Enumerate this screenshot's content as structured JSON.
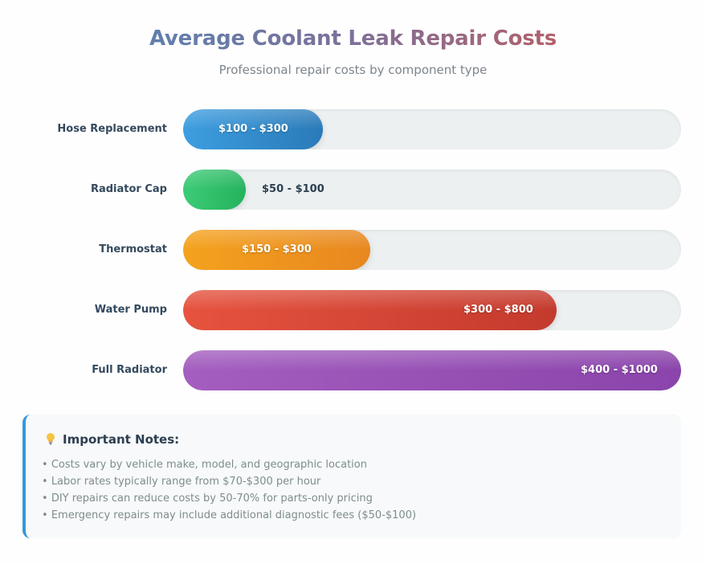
{
  "title": "Average Coolant Leak Repair Costs",
  "subtitle": "Professional repair costs by component type",
  "chart_data": {
    "type": "bar",
    "orientation": "horizontal",
    "title": "Average Coolant Leak Repair Costs",
    "subtitle": "Professional repair costs by component type",
    "categories": [
      "Hose Replacement",
      "Radiator Cap",
      "Thermostat",
      "Water Pump",
      "Full Radiator"
    ],
    "range_labels": [
      "$100 - $300",
      "$50 - $100",
      "$150 - $300",
      "$300 - $800",
      "$400 - $1000"
    ],
    "ranges": [
      [
        100,
        300
      ],
      [
        50,
        100
      ],
      [
        150,
        300
      ],
      [
        300,
        800
      ],
      [
        400,
        1000
      ]
    ],
    "values": [
      300,
      100,
      300,
      800,
      1000
    ],
    "xlim": [
      0,
      1000
    ],
    "fill_fractions": [
      0.28,
      0.125,
      0.375,
      0.75,
      1.0
    ],
    "colors": [
      [
        "#3d9ee0",
        "#2a7ab8"
      ],
      [
        "#3ccb76",
        "#25b25d"
      ],
      [
        "#f4a21e",
        "#e8871f"
      ],
      [
        "#e6533f",
        "#c43a2d"
      ],
      [
        "#a45ebf",
        "#8a44ab"
      ]
    ],
    "label_inside": [
      true,
      false,
      true,
      true,
      true
    ],
    "grid": false,
    "legend": "none"
  },
  "notes": {
    "title": "Important Notes:",
    "icon": "lightbulb-icon",
    "items": [
      "Costs vary by vehicle make, model, and geographic location",
      "Labor rates typically range from $70-$300 per hour",
      "DIY repairs can reduce costs by 50-70% for parts-only pricing",
      "Emergency repairs may include additional diagnostic fees ($50-$100)"
    ]
  }
}
